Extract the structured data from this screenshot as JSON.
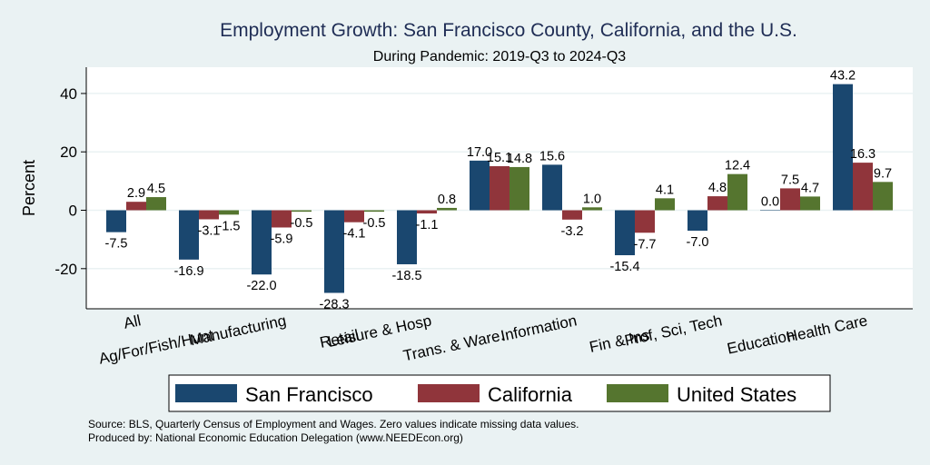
{
  "chart_data": {
    "type": "bar",
    "title": "Employment Growth: San Francisco County, California, and the U.S.",
    "subtitle": "During Pandemic: 2019-Q3 to 2024-Q3",
    "xlabel": "",
    "ylabel": "Percent",
    "ylim": [
      -33.75,
      49
    ],
    "yticks": [
      -20,
      0,
      20,
      40
    ],
    "grid": true,
    "legend_position": "bottom",
    "categories": [
      "All",
      "Ag/For/Fish/Hunt",
      "Manufacturing",
      "Retail",
      "Leisure & Hosp",
      "Trans. & Ware.",
      "Information",
      "Fin & Ins",
      "Prof, Sci, Tech",
      "Education",
      "Health Care"
    ],
    "series": [
      {
        "name": "San Francisco",
        "color": "#1a476f",
        "values": [
          -7.5,
          -16.9,
          -22.0,
          -28.3,
          -18.5,
          17.0,
          15.6,
          -15.4,
          -7.0,
          0.0,
          43.2
        ]
      },
      {
        "name": "California",
        "color": "#90353b",
        "values": [
          2.9,
          -3.1,
          -5.9,
          -4.1,
          -1.1,
          15.1,
          -3.2,
          -7.7,
          4.8,
          7.5,
          16.3
        ]
      },
      {
        "name": "United States",
        "color": "#55752f",
        "values": [
          4.5,
          -1.5,
          -0.5,
          -0.5,
          0.8,
          14.8,
          1.0,
          4.1,
          12.4,
          4.7,
          9.7
        ]
      }
    ],
    "notes": [
      "Source: BLS, Quarterly Census of Employment and Wages. Zero values indicate missing data values.",
      "Produced by: National Economic Education Delegation (www.NEEDEcon.org)"
    ]
  }
}
